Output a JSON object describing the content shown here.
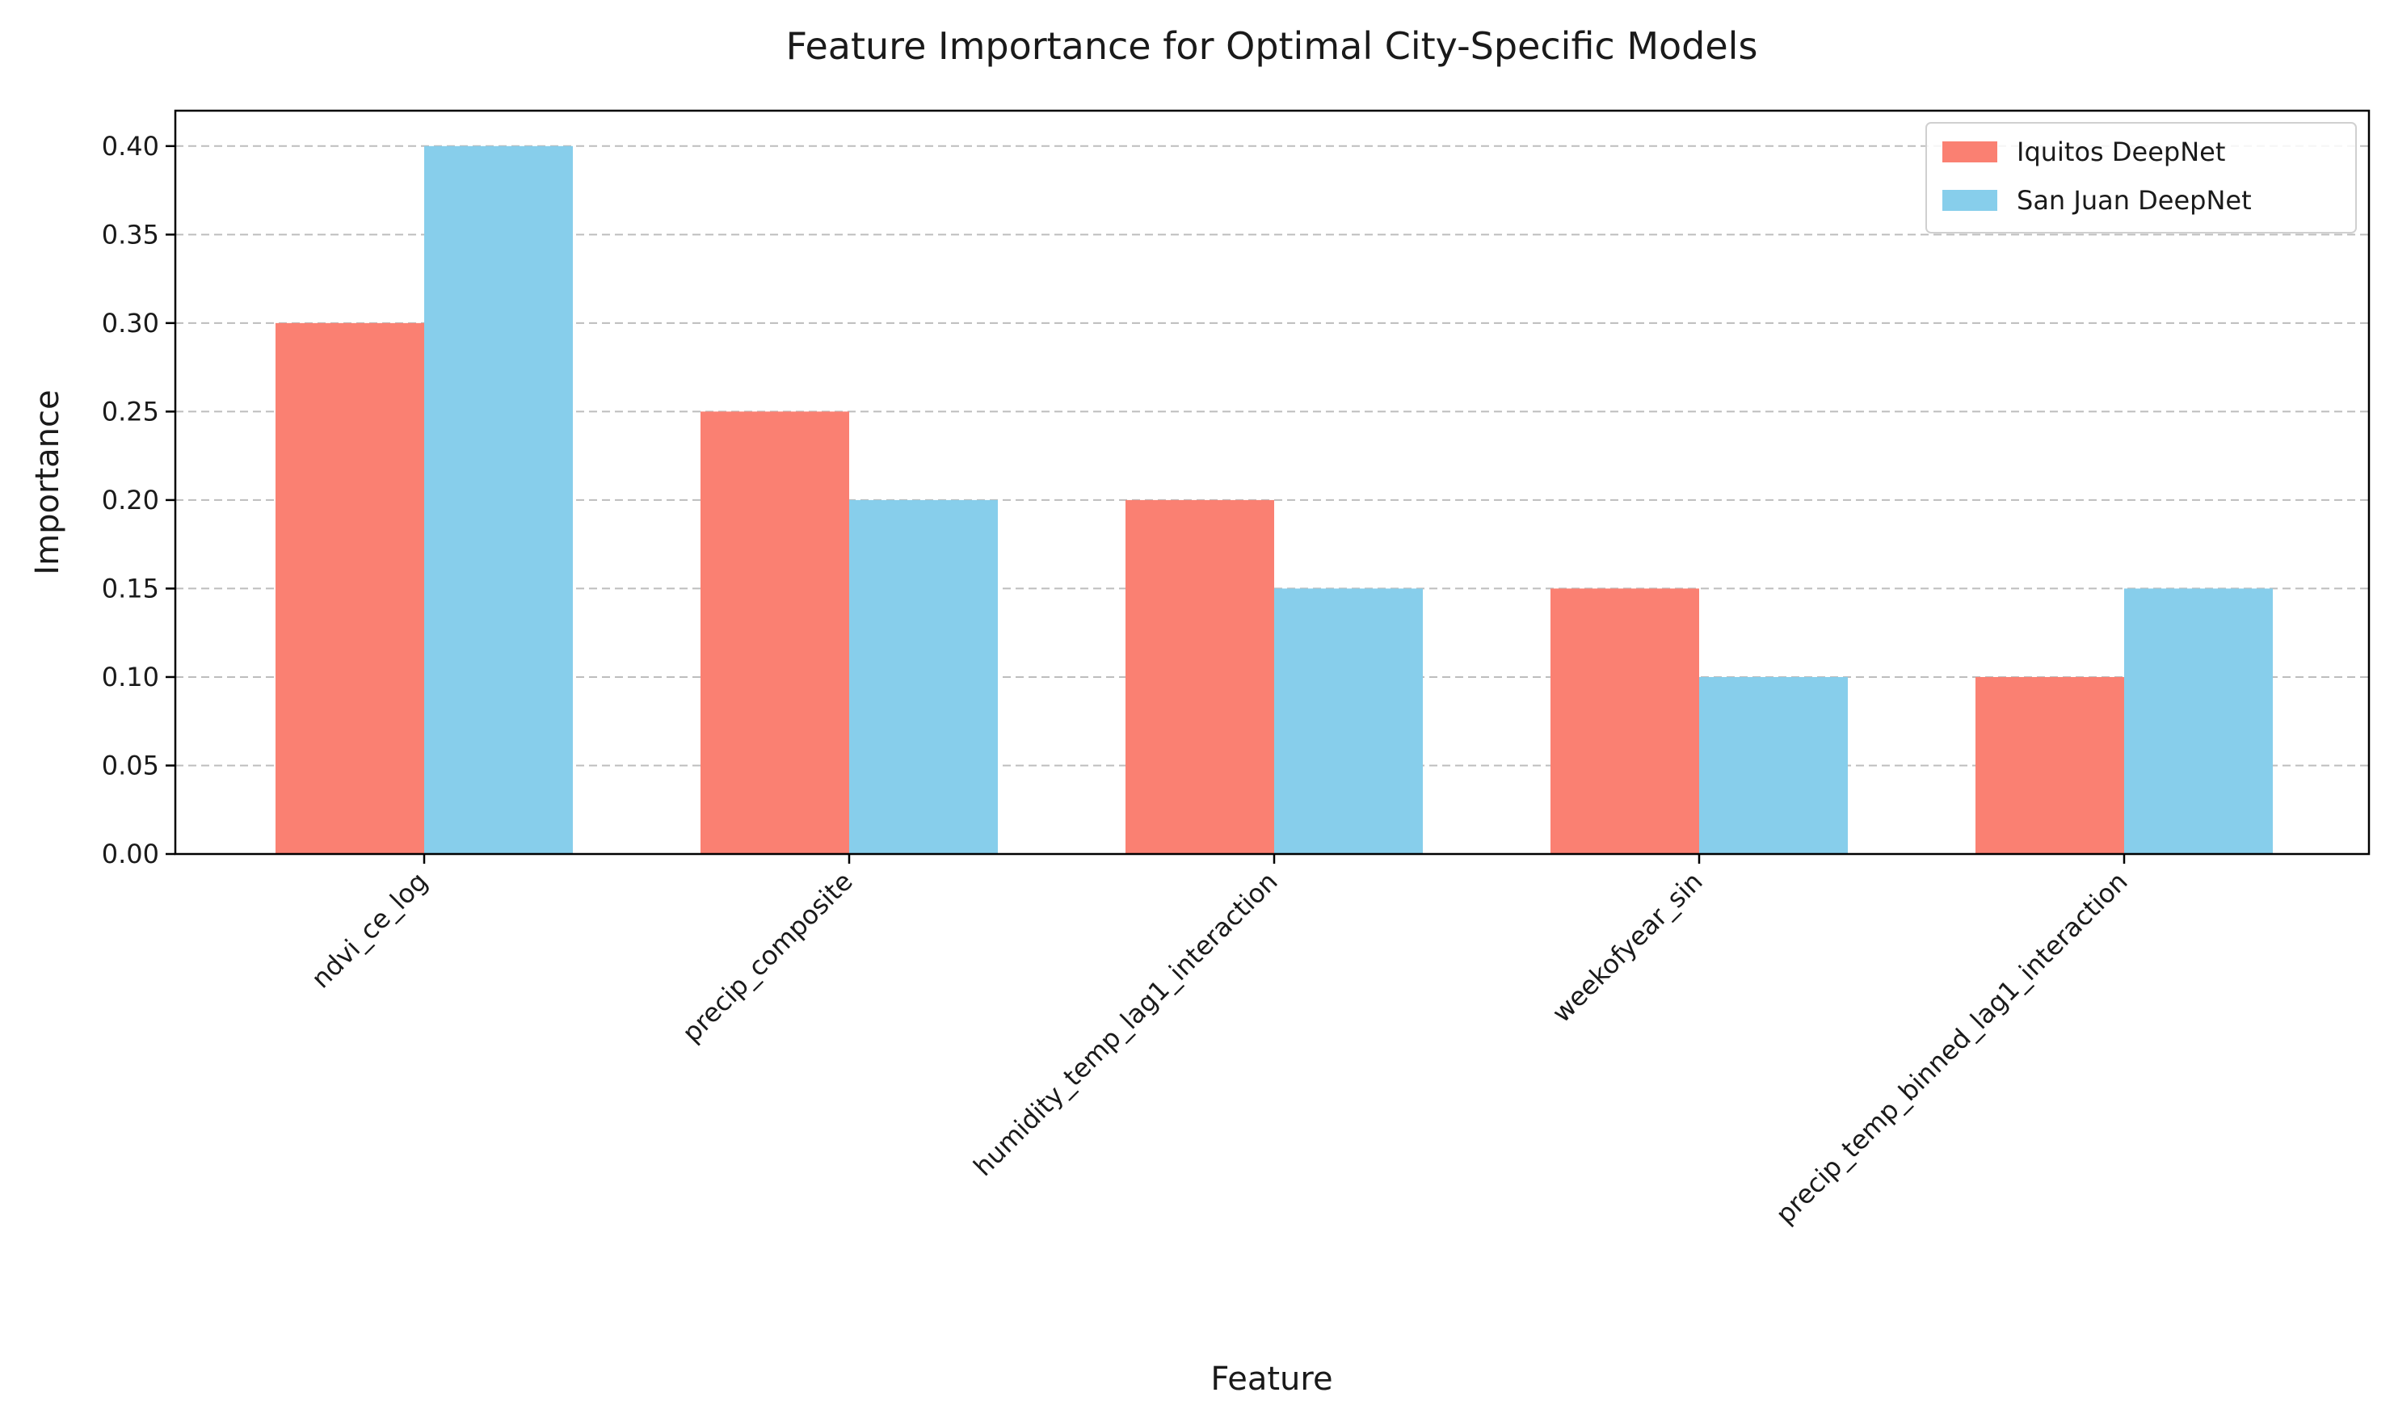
{
  "chart_data": {
    "type": "bar",
    "title": "Feature Importance for Optimal City-Specific Models",
    "xlabel": "Feature",
    "ylabel": "Importance",
    "categories": [
      "ndvi_ce_log",
      "precip_composite",
      "humidity_temp_lag1_interaction",
      "weekofyear_sin",
      "precip_temp_binned_lag1_interaction"
    ],
    "series": [
      {
        "name": "Iquitos DeepNet",
        "values": [
          0.3,
          0.25,
          0.2,
          0.15,
          0.1
        ],
        "color": "#FA8072"
      },
      {
        "name": "San Juan DeepNet",
        "values": [
          0.4,
          0.2,
          0.15,
          0.1,
          0.15
        ],
        "color": "#87CEEB"
      }
    ],
    "ylim": [
      0,
      0.42
    ],
    "yticks": [
      "0.00",
      "0.05",
      "0.10",
      "0.15",
      "0.20",
      "0.25",
      "0.30",
      "0.35",
      "0.40"
    ],
    "grid": "y-dashed",
    "legend_position": "top-right"
  }
}
